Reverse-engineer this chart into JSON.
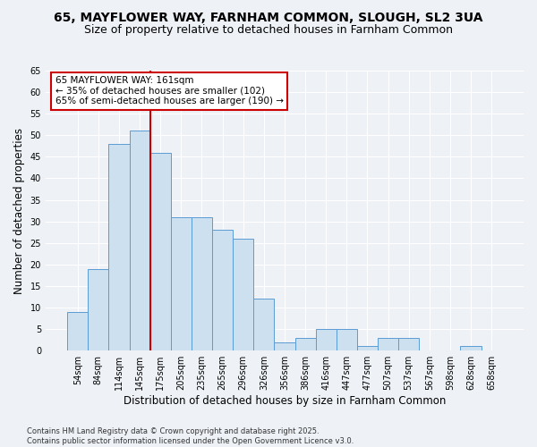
{
  "title_line1": "65, MAYFLOWER WAY, FARNHAM COMMON, SLOUGH, SL2 3UA",
  "title_line2": "Size of property relative to detached houses in Farnham Common",
  "xlabel": "Distribution of detached houses by size in Farnham Common",
  "ylabel": "Number of detached properties",
  "footer": "Contains HM Land Registry data © Crown copyright and database right 2025.\nContains public sector information licensed under the Open Government Licence v3.0.",
  "categories": [
    "54sqm",
    "84sqm",
    "114sqm",
    "145sqm",
    "175sqm",
    "205sqm",
    "235sqm",
    "265sqm",
    "296sqm",
    "326sqm",
    "356sqm",
    "386sqm",
    "416sqm",
    "447sqm",
    "477sqm",
    "507sqm",
    "537sqm",
    "567sqm",
    "598sqm",
    "628sqm",
    "658sqm"
  ],
  "values": [
    9,
    19,
    48,
    51,
    46,
    31,
    31,
    28,
    26,
    12,
    2,
    3,
    5,
    5,
    1,
    3,
    3,
    0,
    0,
    1,
    0
  ],
  "bar_color": "#cce0f0",
  "bar_edge_color": "#5b9bd5",
  "vline_x": 3.5,
  "vline_color": "#cc0000",
  "annotation_text": "65 MAYFLOWER WAY: 161sqm\n← 35% of detached houses are smaller (102)\n65% of semi-detached houses are larger (190) →",
  "annotation_box_color": "#ffffff",
  "annotation_box_edge": "#cc0000",
  "ylim": [
    0,
    65
  ],
  "yticks": [
    0,
    5,
    10,
    15,
    20,
    25,
    30,
    35,
    40,
    45,
    50,
    55,
    60,
    65
  ],
  "background_color": "#eef2f7",
  "grid_color": "#ffffff",
  "title_fontsize": 10,
  "subtitle_fontsize": 9,
  "axis_label_fontsize": 8.5,
  "tick_fontsize": 7,
  "annotation_fontsize": 7.5,
  "footer_fontsize": 6
}
